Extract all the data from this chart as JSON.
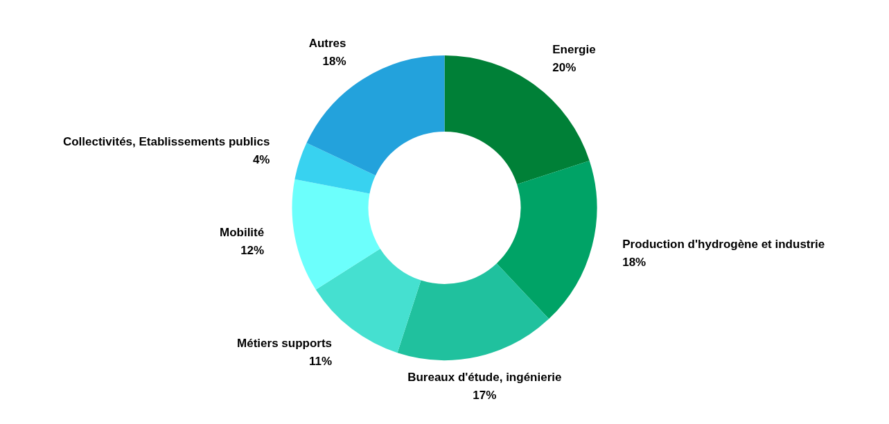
{
  "chart_data": {
    "type": "donut",
    "categories": [
      "Energie",
      "Production d'hydrogène et industrie",
      "Bureaux d'étude, ingénierie",
      "Métiers supports",
      "Mobilité",
      "Collectivités, Etablissements publics",
      "Autres"
    ],
    "values": [
      20,
      18,
      17,
      11,
      12,
      4,
      18
    ],
    "colors": [
      "#008037",
      "#00a366",
      "#20c19e",
      "#45e0d0",
      "#6cfffc",
      "#38d2f0",
      "#23a2dc"
    ],
    "value_labels": [
      "20%",
      "18%",
      "17%",
      "11%",
      "12%",
      "4%",
      "18%"
    ]
  }
}
